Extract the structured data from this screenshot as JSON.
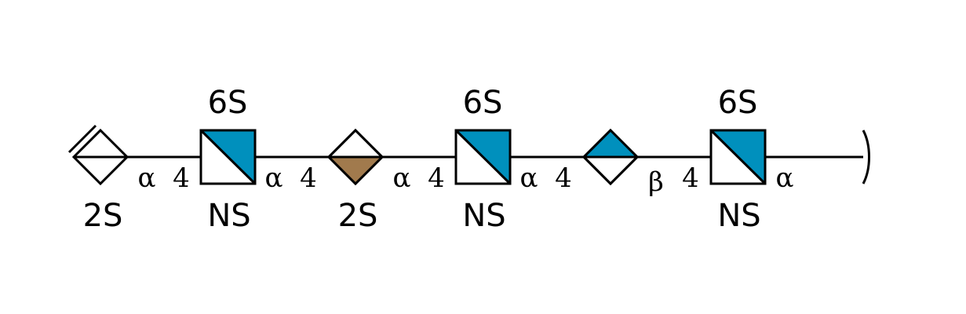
{
  "colors": {
    "glcnac_blue": "#0090bd",
    "idoa_brown": "#a17a4d",
    "glca_blue": "#0090bd",
    "line": "#000000",
    "background": "#ffffff"
  },
  "residues": [
    {
      "id": "r1",
      "type": "unsaturated-hexuronic-acid",
      "label_below": "2S"
    },
    {
      "id": "r2",
      "type": "GlcNAc",
      "label_above": "6S",
      "label_below": "NS"
    },
    {
      "id": "r3",
      "type": "IdoA",
      "label_below": "2S"
    },
    {
      "id": "r4",
      "type": "GlcNAc",
      "label_above": "6S",
      "label_below": "NS"
    },
    {
      "id": "r5",
      "type": "GlcA"
    },
    {
      "id": "r6",
      "type": "GlcNAc",
      "label_above": "6S",
      "label_below": "NS"
    }
  ],
  "linkages": [
    {
      "anomer": "α",
      "position": "4"
    },
    {
      "anomer": "α",
      "position": "4"
    },
    {
      "anomer": "α",
      "position": "4"
    },
    {
      "anomer": "α",
      "position": "4"
    },
    {
      "anomer": "β",
      "position": "4"
    },
    {
      "anomer": "α",
      "position": ""
    }
  ]
}
